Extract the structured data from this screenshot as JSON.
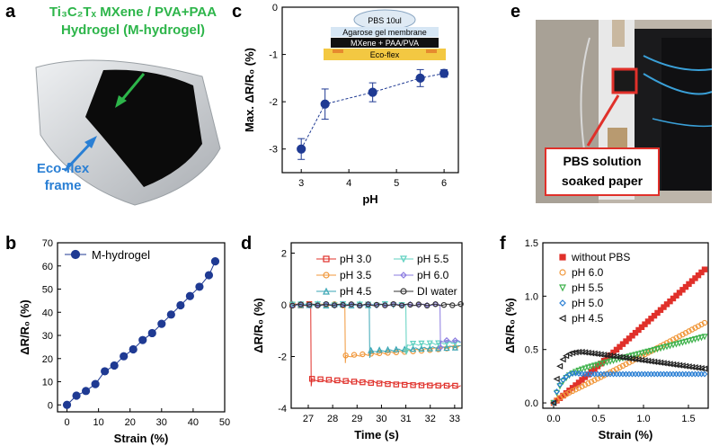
{
  "labels": {
    "a": "a",
    "b": "b",
    "c": "c",
    "d": "d",
    "e": "e",
    "f": "f"
  },
  "panel_a": {
    "title_line1": "Ti₃C₂Tₓ MXene / PVA+PAA",
    "title_line2": "Hydrogel (M-hydrogel)",
    "eco_line1": "Eco-flex",
    "eco_line2": "frame"
  },
  "panel_e": {
    "box_line1": "PBS solution",
    "box_line2": "soaked paper"
  },
  "panel_c_inset": {
    "drop": "PBS 10ul",
    "layer1": "Agarose gel membrane",
    "layer2": "MXene + PAA/PVA",
    "layer3": "Eco-flex"
  },
  "colors": {
    "green": "#2db54a",
    "blue": "#2a7fd4",
    "red": "#e0302a",
    "navy": "#1f3a93"
  },
  "chart_data": [
    {
      "id": "b",
      "type": "scatter",
      "xlabel": "Strain (%)",
      "ylabel": "ΔR/R₀ (%)",
      "xlim": [
        -3,
        50
      ],
      "ylim": [
        -3,
        70
      ],
      "xticks": [
        0,
        10,
        20,
        30,
        40,
        50
      ],
      "yticks": [
        0,
        10,
        20,
        30,
        40,
        50,
        60,
        70
      ],
      "legend": "top-left",
      "series": [
        {
          "name": "M-hydrogel",
          "color": "#1f3a93",
          "x": [
            0,
            3,
            6,
            9,
            12,
            15,
            18,
            21,
            24,
            27,
            30,
            33,
            36,
            39,
            42,
            45,
            47
          ],
          "y": [
            0,
            4,
            6,
            9,
            14.5,
            17,
            21,
            24,
            28,
            31,
            35,
            39,
            43,
            47,
            51,
            56,
            62
          ]
        }
      ]
    },
    {
      "id": "c",
      "type": "line",
      "xlabel": "pH",
      "ylabel": "Max. ΔR/R₀ (%)",
      "xlim": [
        2.6,
        6.3
      ],
      "ylim": [
        -3.5,
        0
      ],
      "xticks": [
        3,
        4,
        5,
        6
      ],
      "yticks": [
        0,
        -1,
        -2,
        -3
      ],
      "series": [
        {
          "name": "",
          "color": "#1f3a93",
          "x": [
            3.0,
            3.5,
            4.5,
            5.5,
            6.0
          ],
          "y": [
            -3.0,
            -2.05,
            -1.8,
            -1.5,
            -1.4
          ],
          "err": [
            0.22,
            0.32,
            0.2,
            0.18,
            0.08
          ]
        }
      ]
    },
    {
      "id": "d",
      "type": "line",
      "xlabel": "Time (s)",
      "ylabel": "ΔR/R₀ (%)",
      "xlim": [
        26.3,
        33.3
      ],
      "ylim": [
        -4,
        2.4
      ],
      "xticks": [
        27,
        28,
        29,
        30,
        31,
        32,
        33
      ],
      "yticks": [
        2,
        0,
        -2,
        -4
      ],
      "legend": "top-right",
      "series": [
        {
          "name": "pH 3.0",
          "color": "#e0302a",
          "marker": "square",
          "drop_t": 27.1,
          "level": -2.9,
          "end": -3.15
        },
        {
          "name": "pH 3.5",
          "color": "#f0973a",
          "marker": "circle",
          "drop_t": 28.5,
          "level": -2.0,
          "end": -1.6
        },
        {
          "name": "pH 4.5",
          "color": "#3aa6b5",
          "marker": "triangle",
          "drop_t": 29.5,
          "level": -1.8,
          "end": -1.6
        },
        {
          "name": "pH 5.5",
          "color": "#5fd1c0",
          "marker": "triangle-down",
          "drop_t": 31.0,
          "level": -1.55,
          "end": -1.45
        },
        {
          "name": "pH 6.0",
          "color": "#8b7be0",
          "marker": "diamond",
          "drop_t": 32.4,
          "level": -1.4,
          "end": -1.4
        },
        {
          "name": "DI water",
          "color": "#333333",
          "marker": "circle",
          "drop_t": null,
          "level": 0,
          "end": 0
        }
      ]
    },
    {
      "id": "f",
      "type": "scatter",
      "xlabel": "Strain (%)",
      "ylabel": "ΔR/R₀ (%)",
      "xlim": [
        -0.12,
        1.72
      ],
      "ylim": [
        -0.05,
        1.5
      ],
      "xticks": [
        0.0,
        0.5,
        1.0,
        1.5
      ],
      "yticks": [
        0.0,
        0.5,
        1.0,
        1.5
      ],
      "legend": "top-left",
      "series": [
        {
          "name": "without PBS",
          "color": "#e0302a",
          "marker": "square",
          "shape": "linear",
          "end": 1.25,
          "knee": 0
        },
        {
          "name": "pH 6.0",
          "color": "#f0973a",
          "marker": "circle",
          "shape": "linear",
          "end": 0.72,
          "knee": 0.1
        },
        {
          "name": "pH 5.5",
          "color": "#3fb24c",
          "marker": "triangle-down",
          "shape": "rise",
          "end": 0.62,
          "knee": 0.25
        },
        {
          "name": "pH 5.0",
          "color": "#2a7fd4",
          "marker": "diamond",
          "shape": "plateau",
          "end": 0.27,
          "knee": 0.28
        },
        {
          "name": "pH 4.5",
          "color": "#222222",
          "marker": "triangle-left",
          "shape": "peak",
          "end": 0.32,
          "knee": 0.48
        }
      ]
    }
  ]
}
